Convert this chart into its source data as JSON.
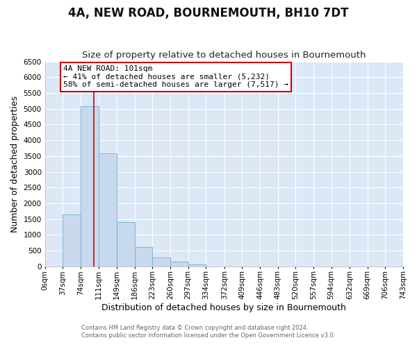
{
  "title": "4A, NEW ROAD, BOURNEMOUTH, BH10 7DT",
  "subtitle": "Size of property relative to detached houses in Bournemouth",
  "xlabel": "Distribution of detached houses by size in Bournemouth",
  "ylabel": "Number of detached properties",
  "bar_heights": [
    0,
    1650,
    5075,
    3580,
    1400,
    610,
    290,
    145,
    55,
    0,
    0,
    0,
    0,
    0,
    0,
    0,
    0,
    0,
    0,
    0
  ],
  "bin_edges": [
    0,
    37,
    74,
    111,
    149,
    186,
    223,
    260,
    297,
    334,
    372,
    409,
    446,
    483,
    520,
    557,
    594,
    632,
    669,
    706,
    743
  ],
  "bin_labels": [
    "0sqm",
    "37sqm",
    "74sqm",
    "111sqm",
    "149sqm",
    "186sqm",
    "223sqm",
    "260sqm",
    "297sqm",
    "334sqm",
    "372sqm",
    "409sqm",
    "446sqm",
    "483sqm",
    "520sqm",
    "557sqm",
    "594sqm",
    "632sqm",
    "669sqm",
    "706sqm",
    "743sqm"
  ],
  "bar_color": "#c9d9ed",
  "bar_edge_color": "#6baed6",
  "vline_x": 101,
  "vline_color": "#cc0000",
  "ylim": [
    0,
    6500
  ],
  "yticks": [
    0,
    500,
    1000,
    1500,
    2000,
    2500,
    3000,
    3500,
    4000,
    4500,
    5000,
    5500,
    6000,
    6500
  ],
  "annotation_title": "4A NEW ROAD: 101sqm",
  "annotation_line1": "← 41% of detached houses are smaller (5,232)",
  "annotation_line2": "58% of semi-detached houses are larger (7,517) →",
  "annotation_box_color": "#ffffff",
  "annotation_border_color": "#cc0000",
  "footnote1": "Contains HM Land Registry data © Crown copyright and database right 2024.",
  "footnote2": "Contains public sector information licensed under the Open Government Licence v3.0.",
  "plot_bg_color": "#dce8f5",
  "fig_bg_color": "#ffffff",
  "grid_color": "#ffffff",
  "title_fontsize": 12,
  "subtitle_fontsize": 9.5,
  "axis_label_fontsize": 9,
  "tick_fontsize": 7.5,
  "annotation_fontsize": 8
}
